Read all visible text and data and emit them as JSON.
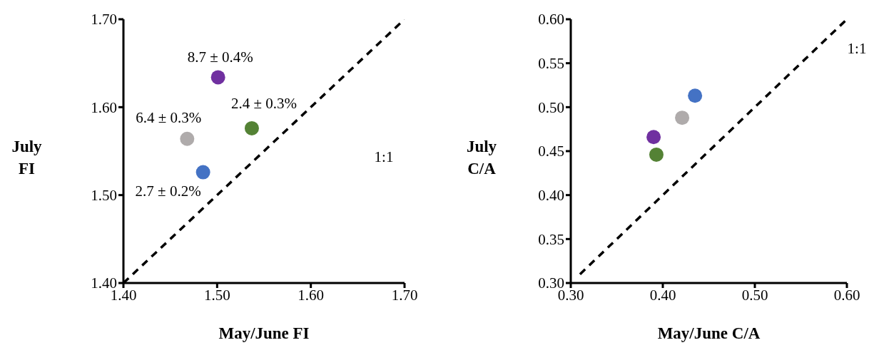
{
  "chart_data": [
    {
      "type": "scatter",
      "xlabel": "May/June FI",
      "ylabel": "July FI",
      "xlim": [
        1.4,
        1.7
      ],
      "ylim": [
        1.4,
        1.7
      ],
      "xticks": [
        {
          "value": 1.4,
          "label": "1.40"
        },
        {
          "value": 1.5,
          "label": "1.50"
        },
        {
          "value": 1.6,
          "label": "1.60"
        },
        {
          "value": 1.7,
          "label": "1.70"
        }
      ],
      "yticks": [
        {
          "value": 1.4,
          "label": "1.40"
        },
        {
          "value": 1.5,
          "label": "1.50"
        },
        {
          "value": 1.6,
          "label": "1.60"
        },
        {
          "value": 1.7,
          "label": "1.70"
        }
      ],
      "marker": "circle",
      "series": [
        {
          "type": "scatter",
          "x": [
            1.501,
            1.537,
            1.468,
            1.485
          ],
          "values": [
            1.634,
            1.576,
            1.564,
            1.526
          ],
          "colors": [
            "#7030a0",
            "#548235",
            "#afabab",
            "#4472c4"
          ]
        },
        {
          "type": "line",
          "name": "1:1",
          "x": [
            1.4,
            1.7
          ],
          "values": [
            1.4,
            1.7
          ],
          "color": "#000000",
          "line_style": "dashed",
          "marker": "none"
        }
      ],
      "annotations": [
        {
          "text": "8.7 ± 0.4%",
          "x": 1.501,
          "y": 1.634
        },
        {
          "text": "2.4 ± 0.3%",
          "x": 1.537,
          "y": 1.576
        },
        {
          "text": "6.4 ± 0.3%",
          "x": 1.468,
          "y": 1.564
        },
        {
          "text": "2.7 ± 0.2%",
          "x": 1.485,
          "y": 1.526
        }
      ]
    },
    {
      "type": "scatter",
      "xlabel": "May/June C/A",
      "ylabel": "July C/A",
      "xlim": [
        0.3,
        0.6
      ],
      "ylim": [
        0.3,
        0.6
      ],
      "xticks": [
        {
          "value": 0.3,
          "label": "0.30"
        },
        {
          "value": 0.4,
          "label": "0.40"
        },
        {
          "value": 0.5,
          "label": "0.50"
        },
        {
          "value": 0.6,
          "label": "0.60"
        }
      ],
      "yticks": [
        {
          "value": 0.3,
          "label": "0.30"
        },
        {
          "value": 0.35,
          "label": "0.35"
        },
        {
          "value": 0.4,
          "label": "0.40"
        },
        {
          "value": 0.45,
          "label": "0.45"
        },
        {
          "value": 0.5,
          "label": "0.50"
        },
        {
          "value": 0.55,
          "label": "0.55"
        },
        {
          "value": 0.6,
          "label": "0.60"
        }
      ],
      "marker": "circle",
      "series": [
        {
          "type": "scatter",
          "x": [
            0.435,
            0.421,
            0.39,
            0.393
          ],
          "values": [
            0.513,
            0.488,
            0.466,
            0.446
          ],
          "colors": [
            "#4472c4",
            "#afabab",
            "#7030a0",
            "#548235"
          ]
        },
        {
          "type": "line",
          "name": "1:1",
          "x": [
            0.31,
            0.6
          ],
          "values": [
            0.31,
            0.6
          ],
          "color": "#000000",
          "line_style": "dashed",
          "marker": "none"
        }
      ]
    }
  ]
}
